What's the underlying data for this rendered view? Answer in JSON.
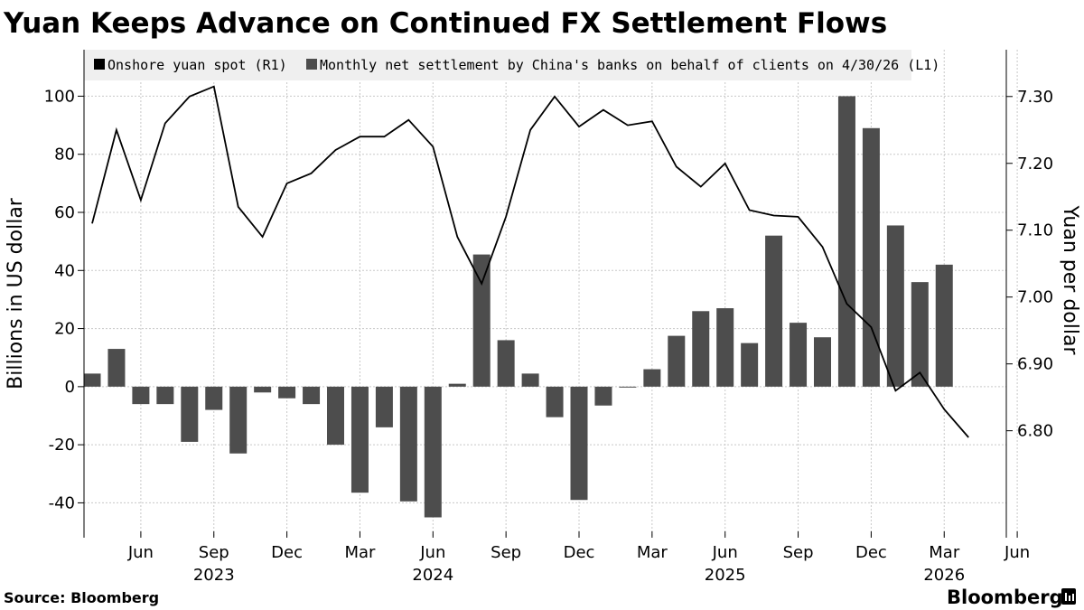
{
  "title": "Yuan Keeps Advance on Continued FX Settlement Flows",
  "source": "Source: Bloomberg",
  "brand": "Bloomberg",
  "colors": {
    "bar": "#4d4d4d",
    "line": "#000000",
    "grid": "#c8c8c8",
    "legend_bg": "#efefef"
  },
  "chart_data": {
    "type": "bar+line",
    "ylabel_left": "Billions in US dollar",
    "ylabel_right": "Yuan per dollar",
    "legend_position": "top",
    "grid": true,
    "y_left": {
      "ticks": [
        "100",
        "80",
        "60",
        "40",
        "20",
        "0",
        "-20",
        "-40"
      ],
      "range": [
        -52,
        116
      ]
    },
    "y_right": {
      "ticks": [
        "7.30",
        "7.20",
        "7.10",
        "7.00",
        "6.90",
        "6.80"
      ],
      "range": [
        6.64,
        7.37
      ]
    },
    "x_ticks": [
      "Jun",
      "Sep",
      "Dec",
      "Mar",
      "Jun",
      "Sep",
      "Dec",
      "Mar",
      "Jun",
      "Sep",
      "Dec",
      "Mar",
      "Jun"
    ],
    "x_years": [
      "2023",
      "2024",
      "2025",
      "2026"
    ],
    "series": [
      {
        "name": "Monthly net settlement by China's banks on behalf of clients on 4/30/26 (L1)",
        "axis": "left",
        "kind": "bar",
        "x": [
          "2023-04",
          "2023-05",
          "2023-06",
          "2023-07",
          "2023-08",
          "2023-09",
          "2023-10",
          "2023-11",
          "2023-12",
          "2024-01",
          "2024-02",
          "2024-03",
          "2024-04",
          "2024-05",
          "2024-06",
          "2024-07",
          "2024-08",
          "2024-09",
          "2024-10",
          "2024-11",
          "2024-12",
          "2025-01",
          "2025-02",
          "2025-03",
          "2025-04",
          "2025-05",
          "2025-06",
          "2025-07",
          "2025-08",
          "2025-09",
          "2025-10",
          "2025-11",
          "2025-12",
          "2026-01",
          "2026-02",
          "2026-03",
          "2026-04"
        ],
        "values": [
          4.5,
          13,
          -6,
          -6,
          -19,
          -8,
          -23,
          -2,
          -4,
          -6,
          -20,
          -36.5,
          -14,
          -39.5,
          -45,
          1,
          45.5,
          16,
          4.5,
          -10.5,
          -39,
          -6.5,
          -0.3,
          6,
          17.5,
          26,
          27,
          15,
          52,
          22,
          17,
          100,
          89,
          55.5,
          36,
          42,
          0
        ]
      },
      {
        "name": "Onshore yuan spot (R1)",
        "axis": "right",
        "kind": "line",
        "x": [
          "2023-04",
          "2023-05",
          "2023-06",
          "2023-07",
          "2023-08",
          "2023-09",
          "2023-10",
          "2023-11",
          "2023-12",
          "2024-01",
          "2024-02",
          "2024-03",
          "2024-04",
          "2024-05",
          "2024-06",
          "2024-07",
          "2024-08",
          "2024-09",
          "2024-10",
          "2024-11",
          "2024-12",
          "2025-01",
          "2025-02",
          "2025-03",
          "2025-04",
          "2025-05",
          "2025-06",
          "2025-07",
          "2025-08",
          "2025-09",
          "2025-10",
          "2025-11",
          "2025-12",
          "2026-01",
          "2026-02",
          "2026-03",
          "2026-04"
        ],
        "values": [
          7.11,
          7.25,
          7.145,
          7.26,
          7.3,
          7.315,
          7.135,
          7.09,
          7.17,
          7.185,
          7.22,
          7.24,
          7.24,
          7.265,
          7.225,
          7.09,
          7.02,
          7.12,
          7.25,
          7.3,
          7.255,
          7.28,
          7.257,
          7.263,
          7.195,
          7.165,
          7.2,
          7.13,
          7.122,
          7.12,
          7.075,
          6.99,
          6.955,
          6.86,
          6.887,
          6.832,
          6.79
        ]
      }
    ]
  }
}
